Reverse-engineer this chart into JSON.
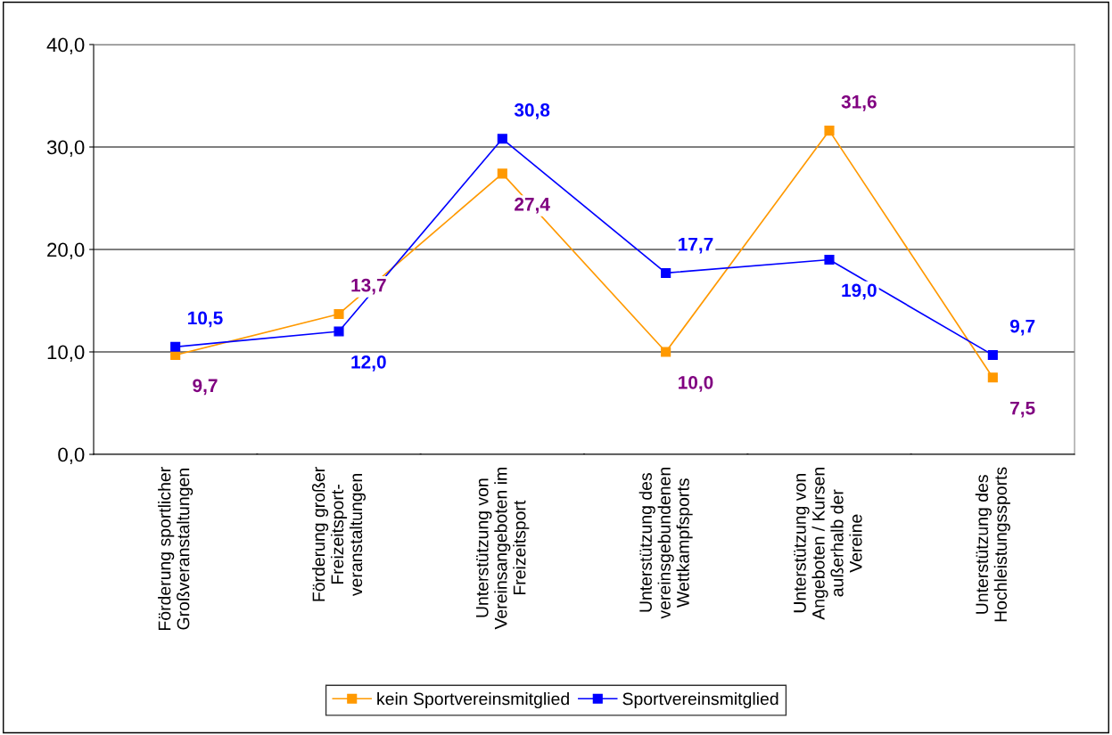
{
  "chart_data": {
    "type": "line",
    "categories": [
      "Förderung sportlicher\nGroßveranstaltungen",
      "Förderung großer\nFreizeitsport-\nveranstaltungen",
      "Unterstützung von\nVereinsangeboten im\nFreizeitsport",
      "Unterstützung des\nvereinsgebundenen\nWettkampfsports",
      "Unterstützung von\nAngeboten / Kursen\naußerhalb der\nVereine",
      "Unterstützung des\nHochleistungssports"
    ],
    "series": [
      {
        "name": "kein Sportvereinsmitglied",
        "color": "#ff9900",
        "values": [
          9.7,
          13.7,
          27.4,
          10.0,
          31.6,
          7.5
        ],
        "value_labels": [
          "9,7",
          "13,7",
          "27,4",
          "10,0",
          "31,6",
          "7,5"
        ]
      },
      {
        "name": "Sportvereinsmitglied",
        "color": "#0000ff",
        "values": [
          10.5,
          12.0,
          30.8,
          17.7,
          19.0,
          9.7
        ],
        "value_labels": [
          "10,5",
          "12,0",
          "30,8",
          "17,7",
          "19,0",
          "9,7"
        ]
      }
    ],
    "ylim": [
      0,
      40
    ],
    "yticks": [
      {
        "value": 0,
        "label": "0,0"
      },
      {
        "value": 10,
        "label": "10,0"
      },
      {
        "value": 20,
        "label": "20,0"
      },
      {
        "value": 30,
        "label": "30,0"
      },
      {
        "value": 40,
        "label": "40,0"
      }
    ],
    "grid": "y",
    "legend": "bottom",
    "marker": "square",
    "line_style": "solid"
  }
}
